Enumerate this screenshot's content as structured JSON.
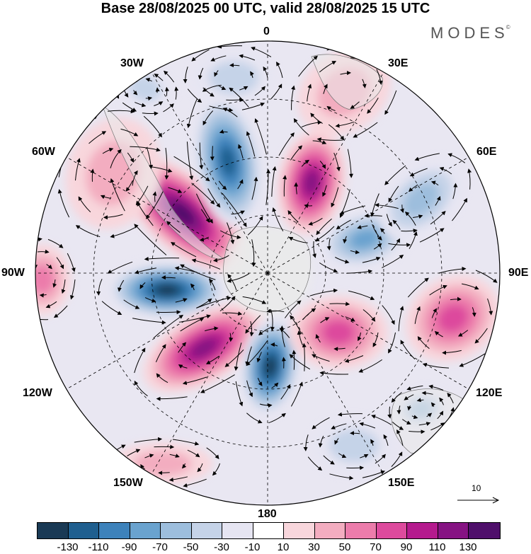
{
  "title": "Base 28/08/2025 00 UTC, valid 28/08/2025 15 UTC",
  "brand": "MODES",
  "brand_mark": "©",
  "longitude_labels": {
    "lon_0": "0",
    "lon_30e": "30E",
    "lon_60e": "60E",
    "lon_90e": "90E",
    "lon_120e": "120E",
    "lon_150e": "150E",
    "lon_180": "180",
    "lon_150w": "150W",
    "lon_120w": "120W",
    "lon_90w": "90W",
    "lon_60w": "60W",
    "lon_30w": "30W"
  },
  "reference_vector": {
    "label": "10"
  },
  "colorbar": {
    "colors": [
      "#1a3a55",
      "#1f5f8f",
      "#3d82bb",
      "#6aa3cf",
      "#9dbedd",
      "#c5d3e8",
      "#e6e5f2",
      "#ffffff",
      "#f8d6dc",
      "#f3adc0",
      "#ec7cab",
      "#dd4a9d",
      "#b51a8e",
      "#861383",
      "#4f0f6b"
    ],
    "ticks": [
      "-130",
      "-110",
      "-90",
      "-70",
      "-50",
      "-30",
      "-10",
      "10",
      "30",
      "50",
      "70",
      "90",
      "110",
      "130"
    ]
  }
}
